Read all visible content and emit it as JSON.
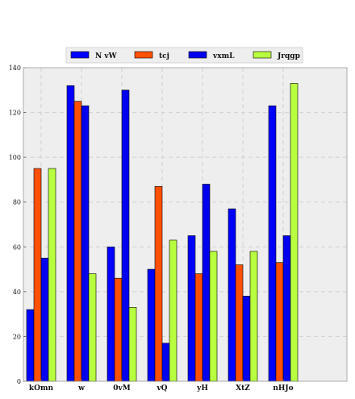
{
  "chart_data": {
    "type": "bar",
    "categories": [
      "kOmn",
      "w",
      "0vM",
      "vQ",
      "yH",
      "XtZ",
      "nHJo"
    ],
    "series": [
      {
        "name": "N vW",
        "color": "#0000ff",
        "values": [
          32,
          132,
          60,
          50,
          65,
          77,
          123
        ]
      },
      {
        "name": "tcj",
        "color": "#ff5000",
        "values": [
          95,
          125,
          46,
          87,
          48,
          52,
          53
        ]
      },
      {
        "name": "vxmL",
        "color": "#0000ee",
        "values": [
          55,
          123,
          130,
          17,
          88,
          38,
          65
        ]
      },
      {
        "name": "Jrqgp",
        "color": "#b8ff40",
        "values": [
          95,
          48,
          33,
          63,
          58,
          58,
          133
        ]
      }
    ],
    "ylim": [
      0,
      140
    ],
    "yticks": [
      0,
      20,
      40,
      60,
      80,
      100,
      120,
      140
    ],
    "grid": true,
    "legend_position": "top-center",
    "background": "#eeeeee"
  }
}
